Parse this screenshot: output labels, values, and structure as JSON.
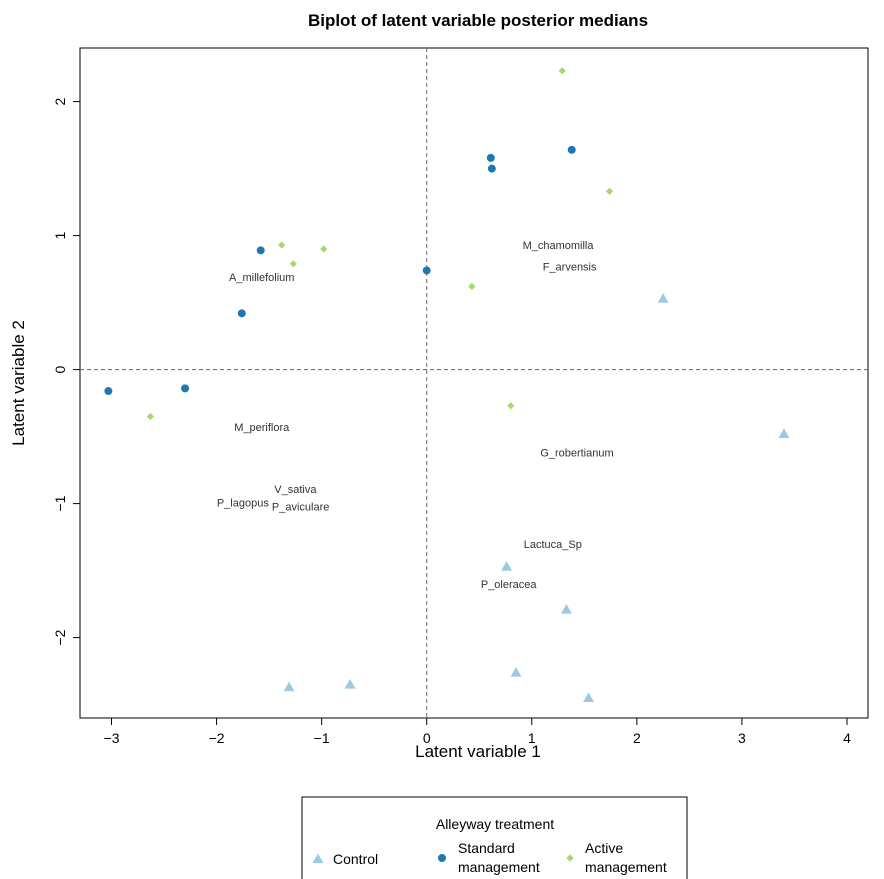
{
  "chart_data": {
    "type": "scatter",
    "title": "Biplot of latent variable posterior medians",
    "xlabel": "Latent variable 1",
    "ylabel": "Latent variable 2",
    "xlim": [
      -3.3,
      4.2
    ],
    "ylim": [
      -2.6,
      2.4
    ],
    "xticks": [
      -3,
      -2,
      -1,
      0,
      1,
      2,
      3,
      4
    ],
    "yticks": [
      -2,
      -1,
      0,
      1,
      2
    ],
    "grid": false,
    "reference_lines": {
      "x": 0,
      "y": 0,
      "style": "dashed"
    },
    "series": [
      {
        "name": "Control",
        "marker": "triangle",
        "color": "#9ecae1",
        "points": [
          [
            2.25,
            0.53
          ],
          [
            3.4,
            -0.48
          ],
          [
            0.76,
            -1.47
          ],
          [
            1.33,
            -1.79
          ],
          [
            0.85,
            -2.26
          ],
          [
            1.54,
            -2.45
          ],
          [
            -1.31,
            -2.37
          ],
          [
            -0.73,
            -2.35
          ]
        ]
      },
      {
        "name": "Standard management",
        "marker": "circle",
        "color": "#1f78b4",
        "points": [
          [
            1.38,
            1.64
          ],
          [
            0.61,
            1.58
          ],
          [
            0.62,
            1.5
          ],
          [
            -1.58,
            0.89
          ],
          [
            0.0,
            0.74
          ],
          [
            -1.76,
            0.42
          ],
          [
            -3.03,
            -0.16
          ],
          [
            -2.3,
            -0.14
          ]
        ]
      },
      {
        "name": "Active management",
        "marker": "diamond",
        "color": "#a6d96a",
        "points": [
          [
            1.29,
            2.23
          ],
          [
            1.74,
            1.33
          ],
          [
            -1.38,
            0.93
          ],
          [
            -0.98,
            0.9
          ],
          [
            -1.27,
            0.79
          ],
          [
            0.43,
            0.62
          ],
          [
            0.8,
            -0.27
          ],
          [
            -2.63,
            -0.35
          ]
        ]
      }
    ],
    "species": [
      {
        "label": "M_chamomilla",
        "x": 1.25,
        "y": 0.93
      },
      {
        "label": "F_arvensis",
        "x": 1.36,
        "y": 0.77
      },
      {
        "label": "A_millefolium",
        "x": -1.57,
        "y": 0.69
      },
      {
        "label": "M_periflora",
        "x": -1.57,
        "y": -0.43
      },
      {
        "label": "G_robertianum",
        "x": 1.43,
        "y": -0.62
      },
      {
        "label": "V_sativa",
        "x": -1.25,
        "y": -0.89
      },
      {
        "label": "P_lagopus",
        "x": -1.75,
        "y": -0.99
      },
      {
        "label": "P_aviculare",
        "x": -1.2,
        "y": -1.02
      },
      {
        "label": "Lactuca_Sp",
        "x": 1.2,
        "y": -1.3
      },
      {
        "label": "P_oleracea",
        "x": 0.78,
        "y": -1.6
      }
    ],
    "legend": {
      "title": "Alleyway treatment",
      "position": "bottom-center",
      "entries": [
        {
          "lines": [
            "Control"
          ],
          "marker": "triangle",
          "color": "#9ecae1"
        },
        {
          "lines": [
            "Standard",
            "management"
          ],
          "marker": "circle",
          "color": "#1f78b4"
        },
        {
          "lines": [
            "Active",
            "management"
          ],
          "marker": "diamond",
          "color": "#a6d96a"
        }
      ]
    }
  }
}
